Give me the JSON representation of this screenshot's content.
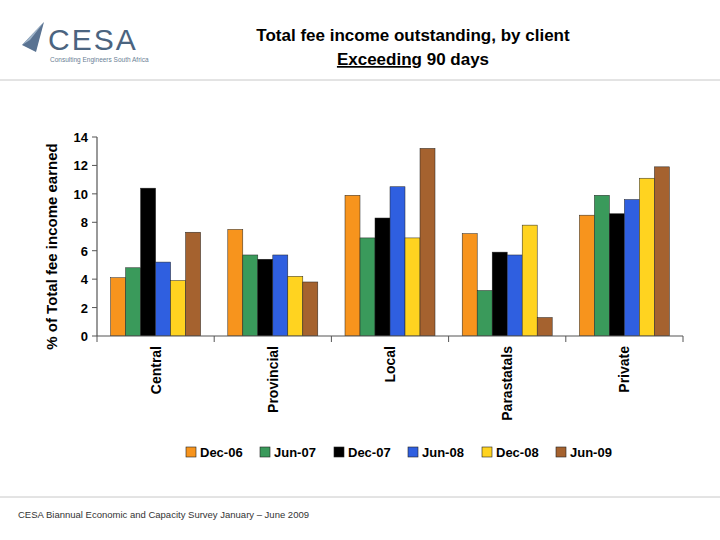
{
  "chart_data": {
    "type": "bar",
    "title": "Total fee income outstanding, by client",
    "subtitle": "Exceeding 90 days",
    "y_label": "% of Total fee income earned",
    "annotations": [
      "CESA",
      "Consulting Engineers South Africa",
      "CESA Biannual Economic and Capacity Survey January – June 2009"
    ],
    "categories": [
      "Central",
      "Provincial",
      "Local",
      "Parastatals",
      "Private"
    ],
    "series": [
      {
        "name": "Dec-06",
        "color": "#f7941d",
        "values": [
          4.1,
          7.5,
          9.9,
          7.2,
          8.5
        ]
      },
      {
        "name": "Jun-07",
        "color": "#3a9a5b",
        "values": [
          4.8,
          5.7,
          6.9,
          3.2,
          9.9
        ]
      },
      {
        "name": "Dec-07",
        "color": "#000000",
        "values": [
          10.4,
          5.4,
          8.3,
          5.9,
          8.6
        ]
      },
      {
        "name": "Jun-08",
        "color": "#2f5fe0",
        "values": [
          5.2,
          5.7,
          10.5,
          5.7,
          9.6
        ]
      },
      {
        "name": "Dec-08",
        "color": "#ffd320",
        "values": [
          3.9,
          4.2,
          6.9,
          7.8,
          11.1
        ]
      },
      {
        "name": "Jun-09",
        "color": "#a5622f",
        "values": [
          7.3,
          3.8,
          13.2,
          1.3,
          11.9
        ]
      }
    ],
    "ylim": [
      0,
      14
    ],
    "yticks": [
      0,
      2,
      4,
      6,
      8,
      10,
      12,
      14
    ],
    "grid": false,
    "legend": "bottom"
  }
}
